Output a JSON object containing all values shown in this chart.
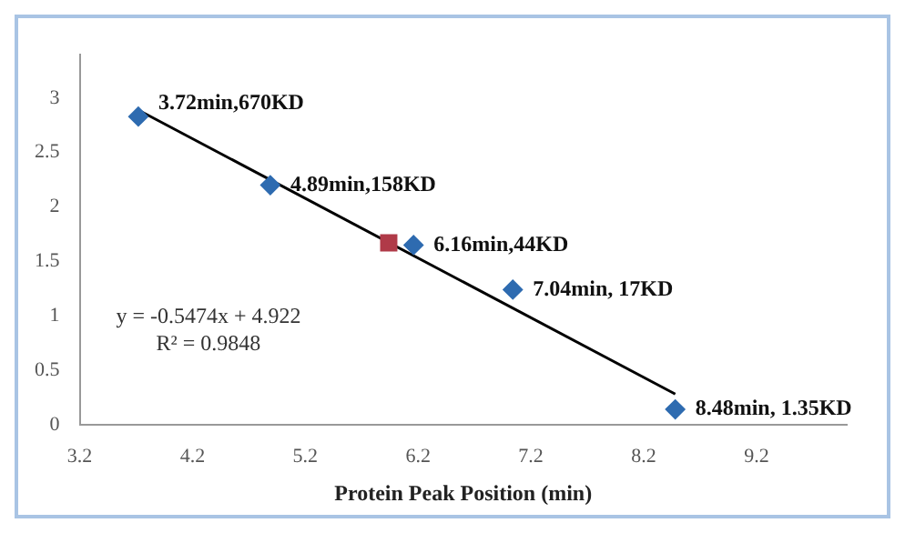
{
  "chart_data": {
    "type": "scatter",
    "xlabel": "Protein Peak Position (min)",
    "xlim": [
      3.2,
      10.0
    ],
    "xticks": [
      3.2,
      4.2,
      5.2,
      6.2,
      7.2,
      8.2,
      9.2
    ],
    "ylim": [
      0,
      3.4
    ],
    "yticks": [
      0,
      0.5,
      1,
      1.5,
      2,
      2.5,
      3
    ],
    "grid": false,
    "legend": false,
    "series": [
      {
        "type": "scatter",
        "color": "#2e6bb0",
        "marker": "diamond",
        "x": [
          3.72,
          4.89,
          6.16,
          7.04,
          8.48
        ],
        "values": [
          2.83,
          2.2,
          1.65,
          1.24,
          0.14
        ]
      },
      {
        "type": "scatter",
        "color": "#b03a48",
        "marker": "square",
        "x": [
          5.94
        ],
        "values": [
          1.67
        ]
      },
      {
        "type": "line",
        "color": "#000000",
        "marker": "none",
        "x": [
          3.72,
          8.48
        ],
        "values": [
          2.89,
          0.28
        ]
      }
    ],
    "annotations": [
      {
        "text": "3.72min,670KD",
        "x": 3.72,
        "y": 2.83
      },
      {
        "text": "4.89min,158KD",
        "x": 4.89,
        "y": 2.2
      },
      {
        "text": "6.16min,44KD",
        "x": 6.16,
        "y": 1.65
      },
      {
        "text": "7.04min, 17KD",
        "x": 7.04,
        "y": 1.24
      },
      {
        "text": "8.48min, 1.35KD",
        "x": 8.48,
        "y": 0.14
      },
      "y = -0.5474x + 4.922",
      "R² = 0.9848"
    ]
  }
}
